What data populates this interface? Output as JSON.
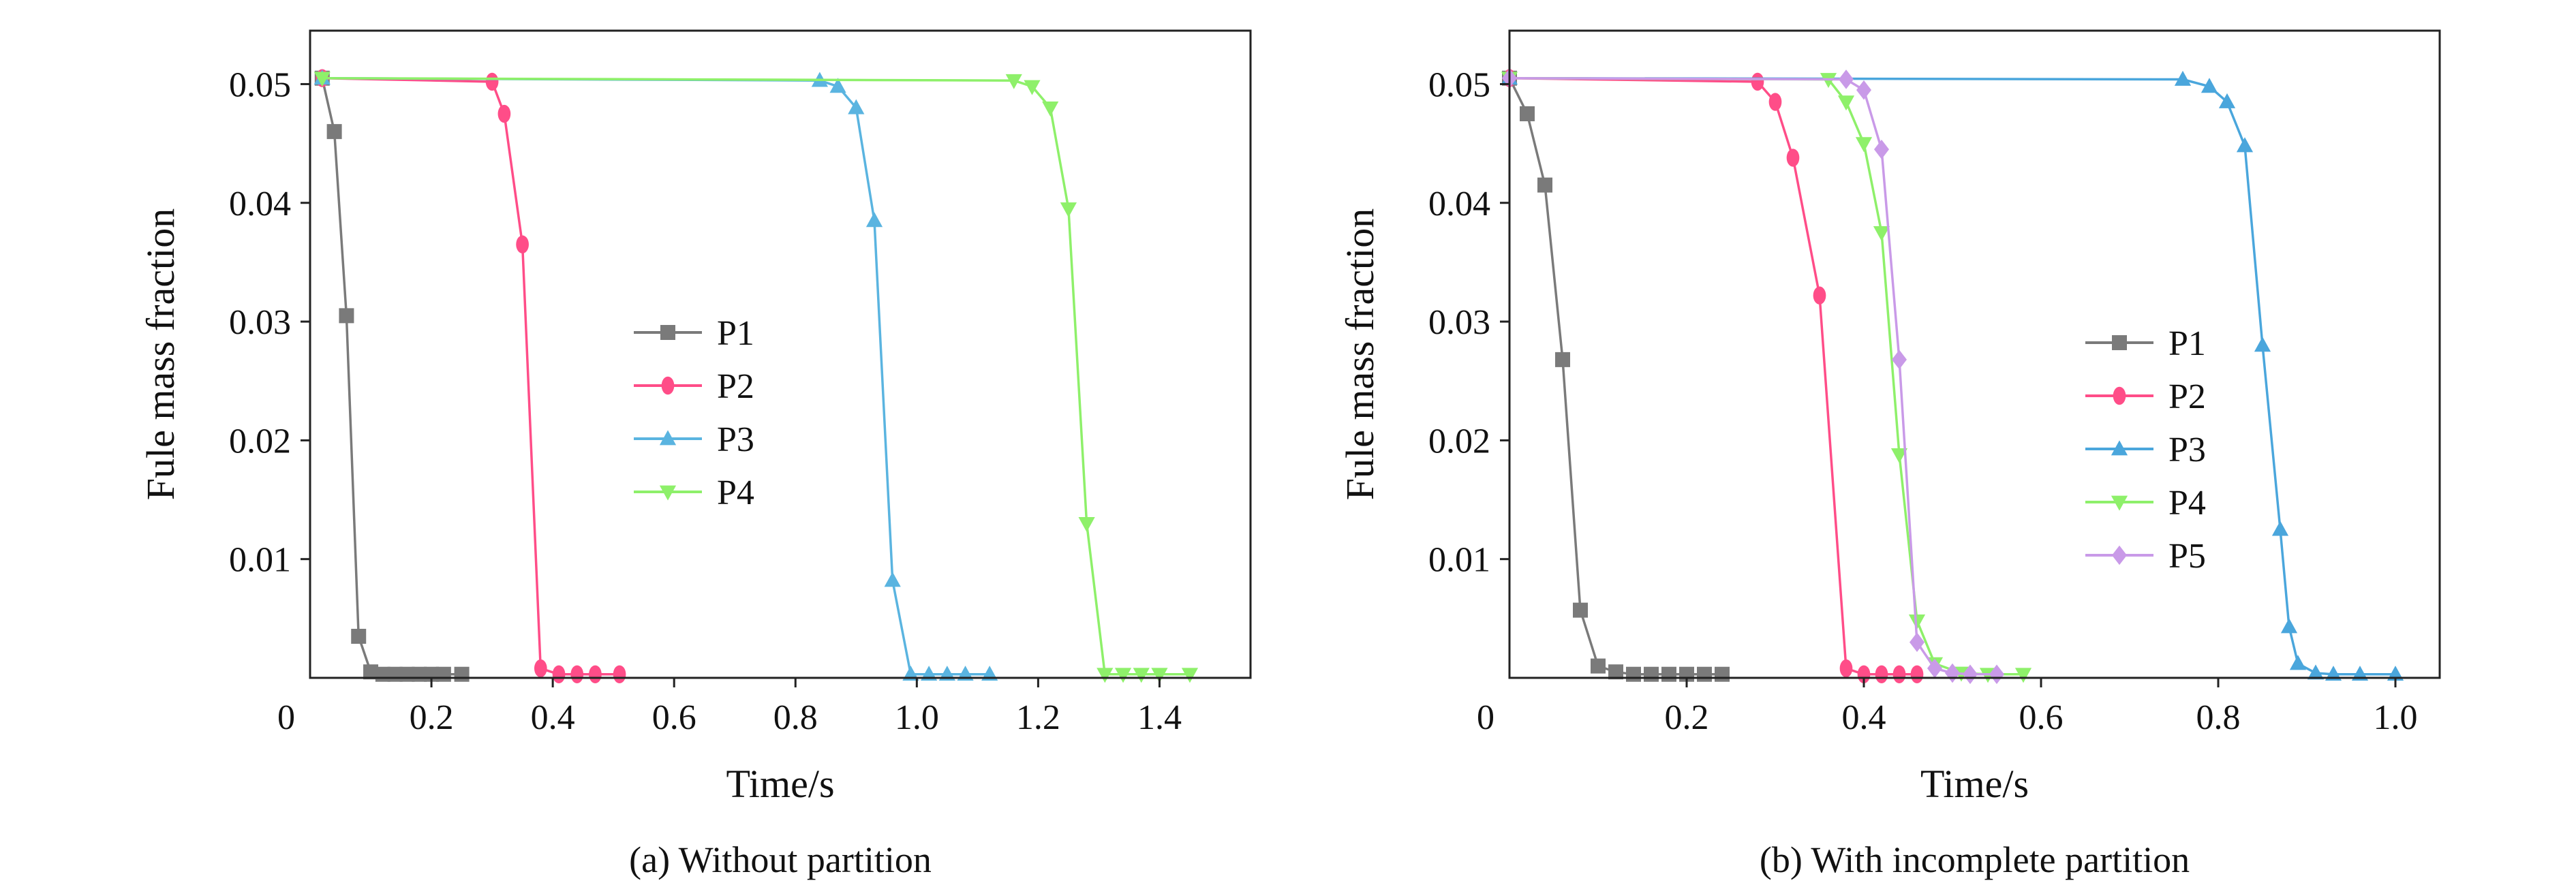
{
  "chart_data": [
    {
      "type": "line",
      "caption": "(a) Without partition",
      "xlabel": "Time/s",
      "ylabel": "Fule mass fraction",
      "xlim": [
        0,
        1.55
      ],
      "ylim": [
        0,
        0.0545
      ],
      "xticks": [
        0,
        0.2,
        0.4,
        0.6,
        0.8,
        1.0,
        1.2,
        1.4
      ],
      "xtick_labels": [
        "0",
        "0.2",
        "0.4",
        "0.6",
        "0.8",
        "1.0",
        "1.2",
        "1.4"
      ],
      "yticks": [
        0.01,
        0.02,
        0.03,
        0.04,
        0.05
      ],
      "ytick_labels": [
        "0.01",
        "0.02",
        "0.03",
        "0.04",
        "0.05"
      ],
      "grid": false,
      "legend_position": "center",
      "series": [
        {
          "name": "P1",
          "color": "#7a7a7a",
          "marker": "square",
          "x": [
            0.02,
            0.04,
            0.06,
            0.08,
            0.1,
            0.12,
            0.14,
            0.16,
            0.18,
            0.2,
            0.22,
            0.25
          ],
          "y": [
            0.0505,
            0.046,
            0.0305,
            0.0035,
            0.0005,
            0.0003,
            0.0003,
            0.0003,
            0.0003,
            0.0003,
            0.0003,
            0.0003
          ]
        },
        {
          "name": "P2",
          "color": "#ff4d88",
          "marker": "circle",
          "x": [
            0.02,
            0.3,
            0.32,
            0.35,
            0.38,
            0.41,
            0.44,
            0.47,
            0.51
          ],
          "y": [
            0.0505,
            0.0502,
            0.0475,
            0.0365,
            0.0008,
            0.0003,
            0.0003,
            0.0003,
            0.0003
          ]
        },
        {
          "name": "P3",
          "color": "#5ab4e0",
          "marker": "triangle-up",
          "x": [
            0.02,
            0.84,
            0.87,
            0.9,
            0.93,
            0.96,
            0.99,
            1.02,
            1.05,
            1.08,
            1.12
          ],
          "y": [
            0.0505,
            0.0503,
            0.0498,
            0.048,
            0.0385,
            0.0082,
            0.0003,
            0.0003,
            0.0003,
            0.0003,
            0.0003
          ]
        },
        {
          "name": "P4",
          "color": "#8ef06a",
          "marker": "triangle-down",
          "x": [
            0.02,
            1.16,
            1.19,
            1.22,
            1.25,
            1.28,
            1.31,
            1.34,
            1.37,
            1.4,
            1.45
          ],
          "y": [
            0.0505,
            0.0503,
            0.0498,
            0.048,
            0.0395,
            0.013,
            0.0003,
            0.0003,
            0.0003,
            0.0003,
            0.0003
          ]
        }
      ]
    },
    {
      "type": "line",
      "caption": "(b) With incomplete partition",
      "xlabel": "Time/s",
      "ylabel": "Fule mass fraction",
      "xlim": [
        0,
        1.05
      ],
      "ylim": [
        0,
        0.0545
      ],
      "xticks": [
        0,
        0.2,
        0.4,
        0.6,
        0.8,
        1.0
      ],
      "xtick_labels": [
        "0",
        "0.2",
        "0.4",
        "0.6",
        "0.8",
        "1.0"
      ],
      "yticks": [
        0.01,
        0.02,
        0.03,
        0.04,
        0.05
      ],
      "ytick_labels": [
        "0.01",
        "0.02",
        "0.03",
        "0.04",
        "0.05"
      ],
      "grid": false,
      "legend_position": "right",
      "series": [
        {
          "name": "P1",
          "color": "#7a7a7a",
          "marker": "square",
          "x": [
            0.0,
            0.02,
            0.04,
            0.06,
            0.08,
            0.1,
            0.12,
            0.14,
            0.16,
            0.18,
            0.2,
            0.22,
            0.24
          ],
          "y": [
            0.0505,
            0.0475,
            0.0415,
            0.0268,
            0.0057,
            0.001,
            0.0005,
            0.0003,
            0.0003,
            0.0003,
            0.0003,
            0.0003,
            0.0003
          ]
        },
        {
          "name": "P2",
          "color": "#ff4d88",
          "marker": "circle",
          "x": [
            0.0,
            0.28,
            0.3,
            0.32,
            0.35,
            0.38,
            0.4,
            0.42,
            0.44,
            0.46
          ],
          "y": [
            0.0505,
            0.0502,
            0.0485,
            0.0438,
            0.0322,
            0.0008,
            0.0003,
            0.0003,
            0.0003,
            0.0003
          ]
        },
        {
          "name": "P3",
          "color": "#4aa6dc",
          "marker": "triangle-up",
          "x": [
            0.0,
            0.76,
            0.79,
            0.81,
            0.83,
            0.85,
            0.87,
            0.88,
            0.89,
            0.91,
            0.93,
            0.96,
            1.0
          ],
          "y": [
            0.0505,
            0.0504,
            0.0498,
            0.0485,
            0.0448,
            0.028,
            0.0125,
            0.0043,
            0.0012,
            0.0004,
            0.0003,
            0.0003,
            0.0003
          ]
        },
        {
          "name": "P4",
          "color": "#8ef06a",
          "marker": "triangle-down",
          "x": [
            0.0,
            0.36,
            0.38,
            0.4,
            0.42,
            0.44,
            0.46,
            0.48,
            0.51,
            0.54,
            0.58
          ],
          "y": [
            0.0505,
            0.0504,
            0.0485,
            0.045,
            0.0375,
            0.0188,
            0.0048,
            0.0012,
            0.0004,
            0.0003,
            0.0003
          ]
        },
        {
          "name": "P5",
          "color": "#c99ae8",
          "marker": "diamond",
          "x": [
            0.0,
            0.38,
            0.4,
            0.42,
            0.44,
            0.46,
            0.48,
            0.5,
            0.52,
            0.55
          ],
          "y": [
            0.0505,
            0.0504,
            0.0495,
            0.0445,
            0.0268,
            0.003,
            0.0008,
            0.0004,
            0.0003,
            0.0003
          ]
        }
      ]
    }
  ]
}
